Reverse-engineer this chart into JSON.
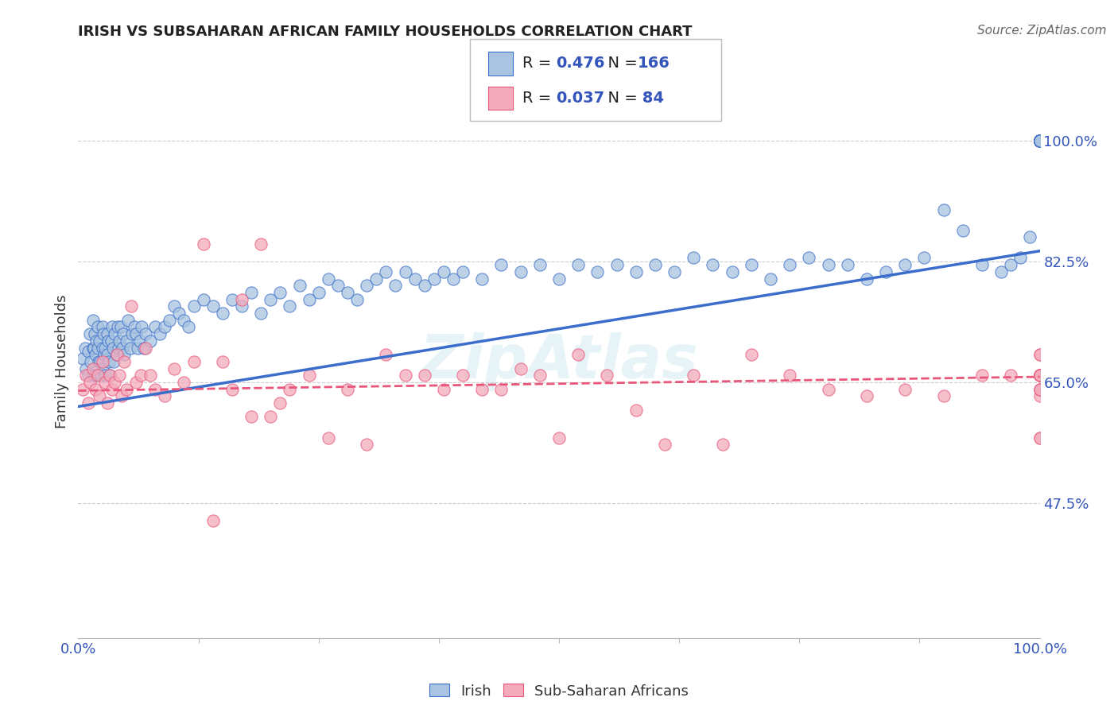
{
  "title": "IRISH VS SUBSAHARAN AFRICAN FAMILY HOUSEHOLDS CORRELATION CHART",
  "source": "Source: ZipAtlas.com",
  "ylabel": "Family Households",
  "ytick_labels": [
    "47.5%",
    "65.0%",
    "82.5%",
    "100.0%"
  ],
  "ytick_values": [
    0.475,
    0.65,
    0.825,
    1.0
  ],
  "blue_color": "#A8C4E0",
  "pink_color": "#F4AABB",
  "blue_line_color": "#3B6ECC",
  "pink_line_color": "#E8567A",
  "legend_R_blue": "0.476",
  "legend_N_blue": "166",
  "legend_R_pink": "0.037",
  "legend_N_pink": " 84",
  "legend_color": "#3355BB",
  "xmin": 0.0,
  "xmax": 1.0,
  "ymin": 0.28,
  "ymax": 1.08,
  "grid_color": "#CCCCCC",
  "background_color": "#FFFFFF",
  "blue_line_x": [
    0.0,
    1.0
  ],
  "blue_line_y": [
    0.615,
    0.84
  ],
  "pink_line_x": [
    0.0,
    1.0
  ],
  "pink_line_y": [
    0.638,
    0.658
  ],
  "blue_scatter_x": [
    0.005,
    0.007,
    0.008,
    0.01,
    0.01,
    0.012,
    0.013,
    0.015,
    0.015,
    0.015,
    0.016,
    0.017,
    0.018,
    0.018,
    0.019,
    0.02,
    0.02,
    0.021,
    0.022,
    0.023,
    0.024,
    0.025,
    0.025,
    0.025,
    0.026,
    0.027,
    0.028,
    0.028,
    0.03,
    0.03,
    0.031,
    0.032,
    0.033,
    0.034,
    0.035,
    0.036,
    0.037,
    0.038,
    0.04,
    0.041,
    0.042,
    0.043,
    0.044,
    0.046,
    0.047,
    0.048,
    0.05,
    0.052,
    0.054,
    0.056,
    0.058,
    0.06,
    0.062,
    0.064,
    0.066,
    0.068,
    0.07,
    0.075,
    0.08,
    0.085,
    0.09,
    0.095,
    0.1,
    0.105,
    0.11,
    0.115,
    0.12,
    0.13,
    0.14,
    0.15,
    0.16,
    0.17,
    0.18,
    0.19,
    0.2,
    0.21,
    0.22,
    0.23,
    0.24,
    0.25,
    0.26,
    0.27,
    0.28,
    0.29,
    0.3,
    0.31,
    0.32,
    0.33,
    0.34,
    0.35,
    0.36,
    0.37,
    0.38,
    0.39,
    0.4,
    0.42,
    0.44,
    0.46,
    0.48,
    0.5,
    0.52,
    0.54,
    0.56,
    0.58,
    0.6,
    0.62,
    0.64,
    0.66,
    0.68,
    0.7,
    0.72,
    0.74,
    0.76,
    0.78,
    0.8,
    0.82,
    0.84,
    0.86,
    0.88,
    0.9,
    0.92,
    0.94,
    0.96,
    0.97,
    0.98,
    0.99,
    1.0,
    1.0,
    1.0,
    1.0,
    1.0,
    1.0,
    1.0,
    1.0,
    1.0,
    1.0,
    1.0,
    1.0,
    1.0,
    1.0,
    1.0,
    1.0,
    1.0,
    1.0,
    1.0,
    1.0,
    1.0,
    1.0,
    1.0,
    1.0,
    1.0,
    1.0,
    1.0,
    1.0,
    1.0,
    1.0,
    1.0,
    1.0,
    1.0,
    1.0,
    1.0,
    1.0,
    1.0,
    1.0,
    1.0,
    1.0
  ],
  "blue_scatter_y": [
    0.685,
    0.7,
    0.67,
    0.695,
    0.66,
    0.72,
    0.68,
    0.74,
    0.7,
    0.66,
    0.7,
    0.72,
    0.69,
    0.66,
    0.71,
    0.73,
    0.7,
    0.68,
    0.71,
    0.68,
    0.66,
    0.73,
    0.7,
    0.67,
    0.72,
    0.69,
    0.66,
    0.7,
    0.72,
    0.69,
    0.71,
    0.68,
    0.66,
    0.71,
    0.73,
    0.7,
    0.68,
    0.72,
    0.69,
    0.73,
    0.7,
    0.71,
    0.73,
    0.7,
    0.72,
    0.69,
    0.71,
    0.74,
    0.7,
    0.72,
    0.73,
    0.72,
    0.7,
    0.71,
    0.73,
    0.7,
    0.72,
    0.71,
    0.73,
    0.72,
    0.73,
    0.74,
    0.76,
    0.75,
    0.74,
    0.73,
    0.76,
    0.77,
    0.76,
    0.75,
    0.77,
    0.76,
    0.78,
    0.75,
    0.77,
    0.78,
    0.76,
    0.79,
    0.77,
    0.78,
    0.8,
    0.79,
    0.78,
    0.77,
    0.79,
    0.8,
    0.81,
    0.79,
    0.81,
    0.8,
    0.79,
    0.8,
    0.81,
    0.8,
    0.81,
    0.8,
    0.82,
    0.81,
    0.82,
    0.8,
    0.82,
    0.81,
    0.82,
    0.81,
    0.82,
    0.81,
    0.83,
    0.82,
    0.81,
    0.82,
    0.8,
    0.82,
    0.83,
    0.82,
    0.82,
    0.8,
    0.81,
    0.82,
    0.83,
    0.9,
    0.87,
    0.82,
    0.81,
    0.82,
    0.83,
    0.86,
    1.0,
    1.0,
    1.0,
    1.0,
    1.0,
    1.0,
    1.0,
    1.0,
    1.0,
    1.0,
    1.0,
    1.0,
    1.0,
    1.0,
    1.0,
    1.0,
    1.0,
    1.0,
    1.0,
    1.0,
    1.0,
    1.0,
    1.0,
    1.0,
    1.0,
    1.0,
    1.0,
    1.0,
    1.0,
    1.0,
    1.0,
    1.0,
    1.0,
    1.0,
    1.0,
    1.0,
    1.0,
    1.0,
    1.0,
    1.0
  ],
  "pink_scatter_x": [
    0.005,
    0.008,
    0.01,
    0.012,
    0.015,
    0.018,
    0.02,
    0.022,
    0.025,
    0.028,
    0.03,
    0.033,
    0.035,
    0.038,
    0.04,
    0.043,
    0.045,
    0.048,
    0.05,
    0.055,
    0.06,
    0.065,
    0.07,
    0.075,
    0.08,
    0.09,
    0.1,
    0.11,
    0.12,
    0.13,
    0.14,
    0.15,
    0.16,
    0.17,
    0.18,
    0.19,
    0.2,
    0.21,
    0.22,
    0.24,
    0.26,
    0.28,
    0.3,
    0.32,
    0.34,
    0.36,
    0.38,
    0.4,
    0.42,
    0.44,
    0.46,
    0.48,
    0.5,
    0.52,
    0.55,
    0.58,
    0.61,
    0.64,
    0.67,
    0.7,
    0.74,
    0.78,
    0.82,
    0.86,
    0.9,
    0.94,
    0.97,
    1.0,
    1.0,
    1.0,
    1.0,
    1.0,
    1.0,
    1.0,
    1.0,
    1.0,
    1.0,
    1.0,
    1.0,
    1.0,
    1.0,
    1.0,
    1.0,
    1.0
  ],
  "pink_scatter_y": [
    0.64,
    0.66,
    0.62,
    0.65,
    0.67,
    0.64,
    0.66,
    0.63,
    0.68,
    0.65,
    0.62,
    0.66,
    0.64,
    0.65,
    0.69,
    0.66,
    0.63,
    0.68,
    0.64,
    0.76,
    0.65,
    0.66,
    0.7,
    0.66,
    0.64,
    0.63,
    0.67,
    0.65,
    0.68,
    0.85,
    0.45,
    0.68,
    0.64,
    0.77,
    0.6,
    0.85,
    0.6,
    0.62,
    0.64,
    0.66,
    0.57,
    0.64,
    0.56,
    0.69,
    0.66,
    0.66,
    0.64,
    0.66,
    0.64,
    0.64,
    0.67,
    0.66,
    0.57,
    0.69,
    0.66,
    0.61,
    0.56,
    0.66,
    0.56,
    0.69,
    0.66,
    0.64,
    0.63,
    0.64,
    0.63,
    0.66,
    0.66,
    0.66,
    0.64,
    0.66,
    0.63,
    0.66,
    0.57,
    0.66,
    0.69,
    0.66,
    0.64,
    0.66,
    0.57,
    0.66,
    0.69,
    0.66,
    0.64,
    0.66
  ]
}
